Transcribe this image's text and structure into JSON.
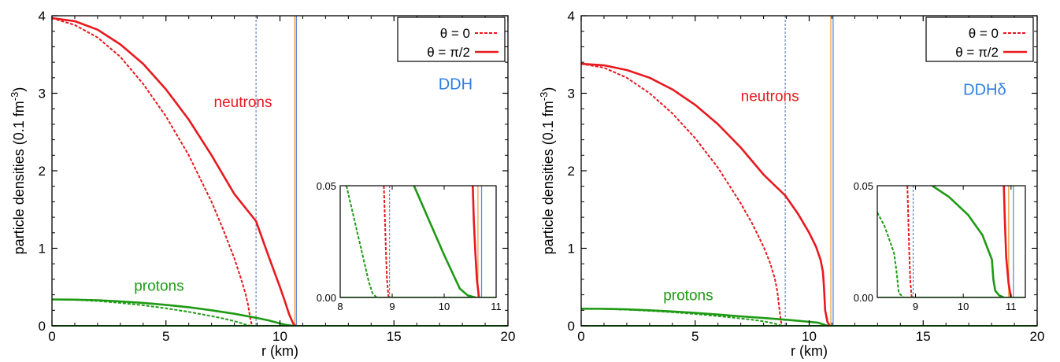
{
  "colors": {
    "neutrons": "#e8191f",
    "protons": "#1e9a14",
    "model": "#2d7fe0",
    "radius_blue": "#5e8ae0",
    "radius_orange": "#f0a040",
    "dashed_marker": "#4a6fa8"
  },
  "chart_data": [
    {
      "type": "line",
      "model_label": "DDH",
      "xlabel": "r (km)",
      "ylabel": "particle densities (0.1 fm",
      "ylabel_sup": "-3",
      "ylabel_close": ")",
      "xlim": [
        0,
        20
      ],
      "ylim": [
        0,
        4
      ],
      "xticks": [
        "0",
        "5",
        "10",
        "15",
        "20"
      ],
      "yticks": [
        "0",
        "1",
        "2",
        "3",
        "4"
      ],
      "legend": {
        "position": "top-right",
        "entries": [
          "θ = 0",
          "θ = π/2"
        ]
      },
      "annotations": {
        "neutrons": "neutrons",
        "protons": "protons"
      },
      "vlines": {
        "dashed": 8.95,
        "solid_orange": 10.65,
        "solid_blue": 10.72
      },
      "series": [
        {
          "name": "θ = 0",
          "species": "neutrons",
          "style": "dashed",
          "x": [
            0,
            1,
            2,
            3,
            4,
            5,
            6,
            7,
            7.5,
            8,
            8.3,
            8.5,
            8.6,
            8.65,
            8.7,
            8.75,
            8.8
          ],
          "y": [
            3.97,
            3.88,
            3.72,
            3.47,
            3.12,
            2.7,
            2.2,
            1.6,
            1.25,
            0.87,
            0.6,
            0.4,
            0.27,
            0.18,
            0.09,
            0.03,
            0.0
          ]
        },
        {
          "name": "θ = π/2",
          "species": "neutrons",
          "style": "solid",
          "x": [
            0,
            1,
            2,
            3,
            4,
            5,
            6,
            7,
            8,
            8.95,
            9.5,
            10,
            10.2,
            10.4,
            10.55,
            10.62,
            10.7
          ],
          "y": [
            3.97,
            3.93,
            3.82,
            3.63,
            3.38,
            3.05,
            2.66,
            2.2,
            1.7,
            1.35,
            0.9,
            0.5,
            0.33,
            0.15,
            0.05,
            0.01,
            0.0
          ]
        },
        {
          "name": "θ = 0",
          "species": "protons",
          "style": "dashed",
          "x": [
            0,
            1,
            2,
            3,
            4,
            5,
            6,
            7,
            7.5,
            8,
            8.3,
            8.5,
            8.7
          ],
          "y": [
            0.34,
            0.335,
            0.32,
            0.295,
            0.265,
            0.225,
            0.18,
            0.125,
            0.095,
            0.06,
            0.035,
            0.015,
            0.0
          ]
        },
        {
          "name": "θ = π/2",
          "species": "protons",
          "style": "solid",
          "x": [
            0,
            1,
            2,
            3,
            4,
            5,
            6,
            7,
            8,
            9,
            9.5,
            10,
            10.3,
            10.6
          ],
          "y": [
            0.34,
            0.337,
            0.33,
            0.315,
            0.295,
            0.27,
            0.24,
            0.2,
            0.155,
            0.1,
            0.07,
            0.03,
            0.01,
            0.0
          ]
        }
      ],
      "inset": {
        "xlim": [
          8,
          11
        ],
        "ylim": [
          0,
          0.05
        ],
        "xticks": [
          "8",
          "9",
          "10",
          "11"
        ],
        "yticks": [
          "0.00",
          "0.05"
        ],
        "series": [
          {
            "species": "neutrons",
            "style": "dashed",
            "x": [
              8.84,
              8.86,
              8.88,
              8.9,
              8.93
            ],
            "y": [
              0.05,
              0.035,
              0.02,
              0.008,
              0.0
            ]
          },
          {
            "species": "neutrons",
            "style": "solid",
            "x": [
              10.55,
              10.57,
              10.6,
              10.63,
              10.67
            ],
            "y": [
              0.05,
              0.035,
              0.02,
              0.008,
              0.0
            ]
          },
          {
            "species": "protons",
            "style": "dashed",
            "x": [
              8.12,
              8.3,
              8.45,
              8.55,
              8.62,
              8.7
            ],
            "y": [
              0.05,
              0.032,
              0.017,
              0.007,
              0.002,
              0.0
            ]
          },
          {
            "species": "protons",
            "style": "solid",
            "x": [
              9.42,
              9.7,
              10.0,
              10.2,
              10.3,
              10.45,
              10.6
            ],
            "y": [
              0.05,
              0.035,
              0.019,
              0.009,
              0.004,
              0.001,
              0.0
            ]
          }
        ]
      }
    },
    {
      "type": "line",
      "model_label": "DDHδ",
      "xlabel": "r (km)",
      "ylabel": "particle densities (0.1 fm",
      "ylabel_sup": "-3",
      "ylabel_close": ")",
      "xlim": [
        0,
        20
      ],
      "ylim": [
        0,
        4
      ],
      "xticks": [
        "0",
        "5",
        "10",
        "15",
        "20"
      ],
      "yticks": [
        "0",
        "1",
        "2",
        "3",
        "4"
      ],
      "legend": {
        "position": "top-right",
        "entries": [
          "θ = 0",
          "θ = π/2"
        ]
      },
      "annotations": {
        "neutrons": "neutrons",
        "protons": "protons"
      },
      "vlines": {
        "dashed": 8.95,
        "solid_orange": 10.95,
        "solid_blue": 11.05
      },
      "series": [
        {
          "name": "θ = 0",
          "species": "neutrons",
          "style": "dashed",
          "x": [
            0,
            1,
            2,
            3,
            4,
            5,
            6,
            7,
            7.5,
            8,
            8.3,
            8.5,
            8.6,
            8.65,
            8.7,
            8.75,
            8.8
          ],
          "y": [
            3.38,
            3.33,
            3.2,
            3.0,
            2.74,
            2.42,
            2.04,
            1.58,
            1.32,
            1.02,
            0.8,
            0.6,
            0.45,
            0.33,
            0.2,
            0.08,
            0.0
          ]
        },
        {
          "name": "θ = π/2",
          "species": "neutrons",
          "style": "solid",
          "x": [
            0,
            1,
            2,
            3,
            4,
            5,
            6,
            7,
            8,
            8.95,
            9.5,
            10,
            10.3,
            10.5,
            10.6,
            10.65,
            10.7,
            10.8,
            10.9
          ],
          "y": [
            3.38,
            3.36,
            3.3,
            3.2,
            3.05,
            2.85,
            2.6,
            2.3,
            1.95,
            1.68,
            1.45,
            1.2,
            1.02,
            0.85,
            0.7,
            0.5,
            0.2,
            0.05,
            0.0
          ]
        },
        {
          "name": "θ = 0",
          "species": "protons",
          "style": "dashed",
          "x": [
            0,
            1,
            2,
            3,
            4,
            5,
            6,
            7,
            7.5,
            8,
            8.3,
            8.6,
            8.8
          ],
          "y": [
            0.22,
            0.217,
            0.208,
            0.193,
            0.175,
            0.152,
            0.125,
            0.095,
            0.078,
            0.058,
            0.04,
            0.02,
            0.0
          ]
        },
        {
          "name": "θ = π/2",
          "species": "protons",
          "style": "solid",
          "x": [
            0,
            1,
            2,
            3,
            4,
            5,
            6,
            7,
            8,
            9,
            10,
            10.4,
            10.6,
            10.75,
            10.85
          ],
          "y": [
            0.22,
            0.219,
            0.212,
            0.2,
            0.185,
            0.167,
            0.145,
            0.122,
            0.1,
            0.078,
            0.052,
            0.04,
            0.02,
            0.005,
            0.0
          ]
        }
      ],
      "inset": {
        "xlim": [
          8.2,
          11.3
        ],
        "ylim": [
          0,
          0.05
        ],
        "xticks": [
          "9",
          "10",
          "11"
        ],
        "yticks": [
          "0.00",
          "0.05"
        ],
        "series": [
          {
            "species": "neutrons",
            "style": "dashed",
            "x": [
              8.83,
              8.85,
              8.87,
              8.89,
              8.92
            ],
            "y": [
              0.05,
              0.035,
              0.02,
              0.008,
              0.0
            ]
          },
          {
            "species": "neutrons",
            "style": "solid",
            "x": [
              10.85,
              10.87,
              10.9,
              10.95,
              11.0
            ],
            "y": [
              0.05,
              0.035,
              0.018,
              0.006,
              0.0
            ]
          },
          {
            "species": "protons",
            "style": "dashed",
            "x": [
              8.2,
              8.35,
              8.45,
              8.55,
              8.6,
              8.65,
              8.75
            ],
            "y": [
              0.038,
              0.032,
              0.026,
              0.02,
              0.012,
              0.002,
              0.0
            ]
          },
          {
            "species": "protons",
            "style": "solid",
            "x": [
              9.35,
              9.7,
              10.1,
              10.4,
              10.6,
              10.63,
              10.67,
              10.75,
              10.85
            ],
            "y": [
              0.05,
              0.045,
              0.037,
              0.028,
              0.017,
              0.008,
              0.003,
              0.001,
              0.0
            ]
          }
        ]
      }
    }
  ]
}
